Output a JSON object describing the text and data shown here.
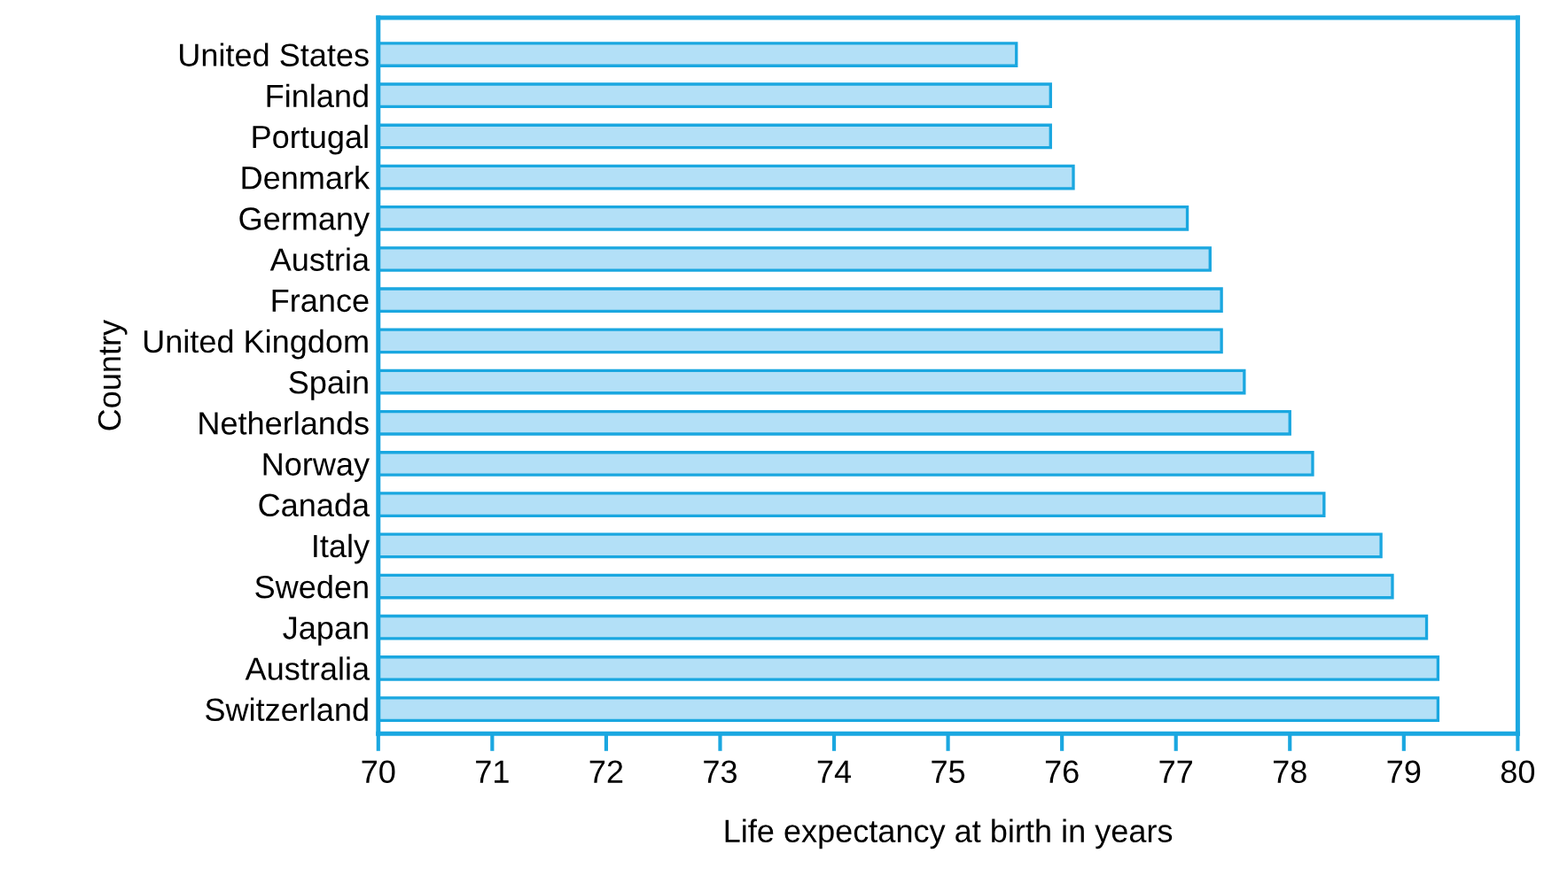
{
  "chart_data": {
    "type": "bar",
    "orientation": "horizontal",
    "xlabel": "Life expectancy at birth in years",
    "ylabel": "Country",
    "categories": [
      "United States",
      "Finland",
      "Portugal",
      "Denmark",
      "Germany",
      "Austria",
      "France",
      "United Kingdom",
      "Spain",
      "Netherlands",
      "Norway",
      "Canada",
      "Italy",
      "Sweden",
      "Japan",
      "Australia",
      "Switzerland"
    ],
    "values": [
      75.6,
      75.9,
      75.9,
      76.1,
      77.1,
      77.3,
      77.4,
      77.4,
      77.6,
      78.0,
      78.2,
      78.3,
      78.8,
      78.9,
      79.2,
      79.3,
      79.3
    ],
    "color": "#b3e0f7",
    "xlim": [
      70,
      80
    ],
    "xticks": [
      70,
      71,
      72,
      73,
      74,
      75,
      76,
      77,
      78,
      79,
      80
    ],
    "grid": false,
    "legend": false
  }
}
